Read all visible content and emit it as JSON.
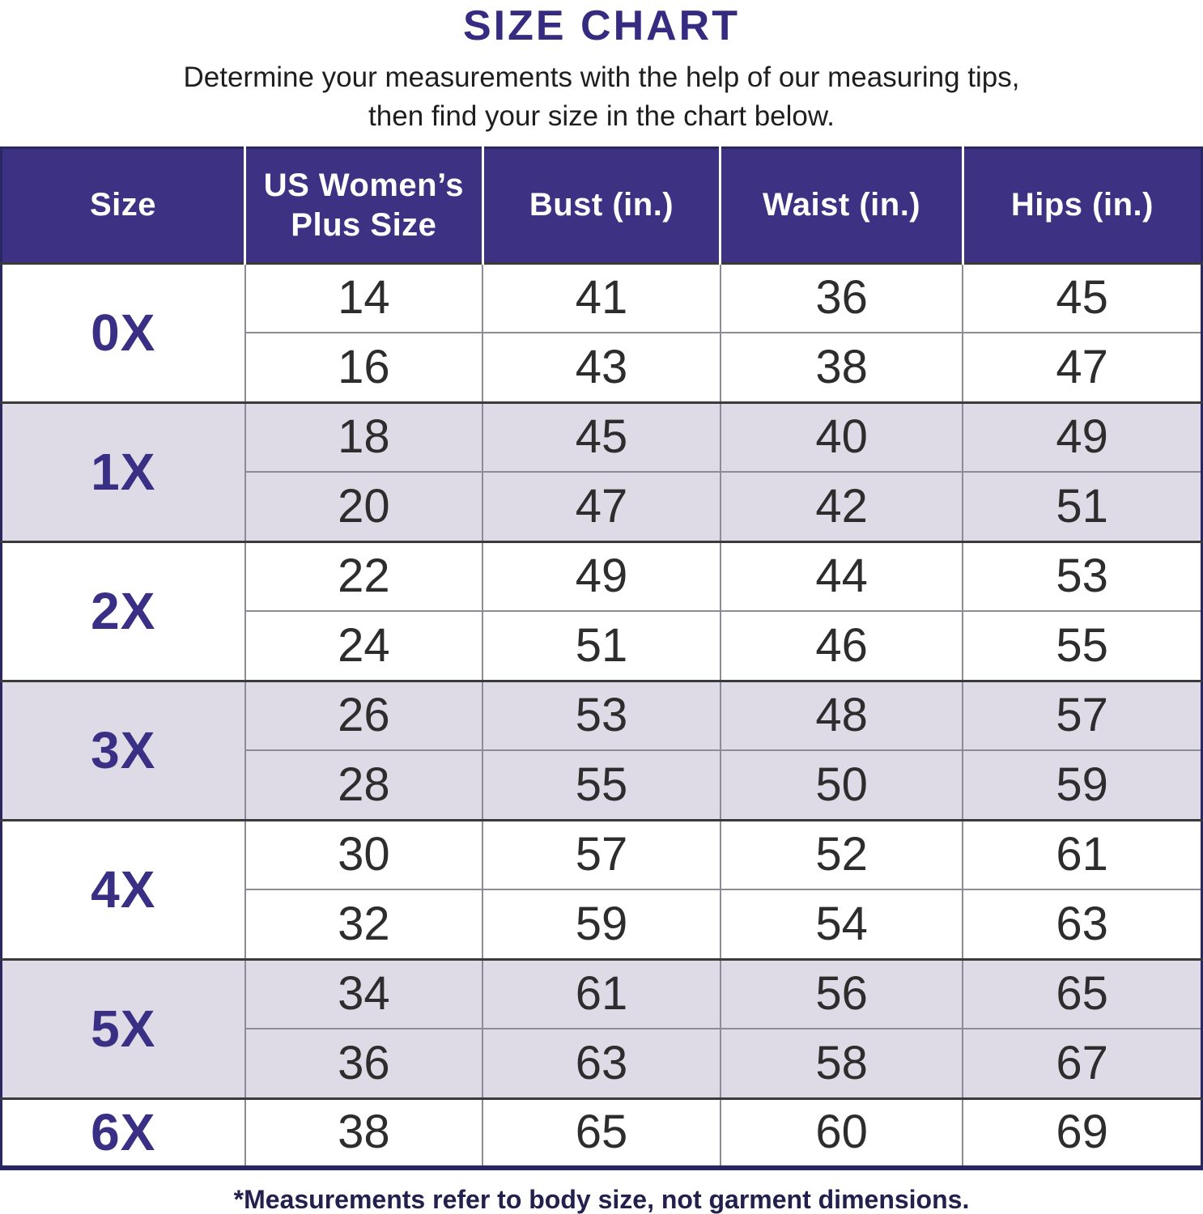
{
  "page": {
    "title": "SIZE CHART",
    "subtitle_line1": "Determine your measurements with the help of our measuring tips,",
    "subtitle_line2": "then find your size in the chart below.",
    "footnote": "*Measurements refer to body size, not garment dimensions."
  },
  "colors": {
    "header_bg": "#3C3183",
    "header_text": "#FFFFFF",
    "accent_purple": "#392F85",
    "title_purple": "#352C82",
    "shaded_row_bg": "#DEDAE6",
    "plain_row_bg": "#FFFFFF",
    "data_text": "#2D2D2D",
    "footnote_text": "#21204E",
    "outer_border": "#2A2661",
    "group_divider": "#3A3A3A",
    "cell_divider": "#8C8C99"
  },
  "chart_data": {
    "type": "table",
    "title": "SIZE CHART",
    "columns": [
      "Size",
      "US Women’s Plus Size",
      "Bust (in.)",
      "Waist (in.)",
      "Hips (in.)"
    ],
    "groups": [
      {
        "size": "0X",
        "rows": [
          [
            "14",
            "41",
            "36",
            "45"
          ],
          [
            "16",
            "43",
            "38",
            "47"
          ]
        ]
      },
      {
        "size": "1X",
        "rows": [
          [
            "18",
            "45",
            "40",
            "49"
          ],
          [
            "20",
            "47",
            "42",
            "51"
          ]
        ]
      },
      {
        "size": "2X",
        "rows": [
          [
            "22",
            "49",
            "44",
            "53"
          ],
          [
            "24",
            "51",
            "46",
            "55"
          ]
        ]
      },
      {
        "size": "3X",
        "rows": [
          [
            "26",
            "53",
            "48",
            "57"
          ],
          [
            "28",
            "55",
            "50",
            "59"
          ]
        ]
      },
      {
        "size": "4X",
        "rows": [
          [
            "30",
            "57",
            "52",
            "61"
          ],
          [
            "32",
            "59",
            "54",
            "63"
          ]
        ]
      },
      {
        "size": "5X",
        "rows": [
          [
            "34",
            "61",
            "56",
            "65"
          ],
          [
            "36",
            "63",
            "58",
            "67"
          ]
        ]
      },
      {
        "size": "6X",
        "rows": [
          [
            "38",
            "65",
            "60",
            "69"
          ]
        ]
      }
    ]
  }
}
